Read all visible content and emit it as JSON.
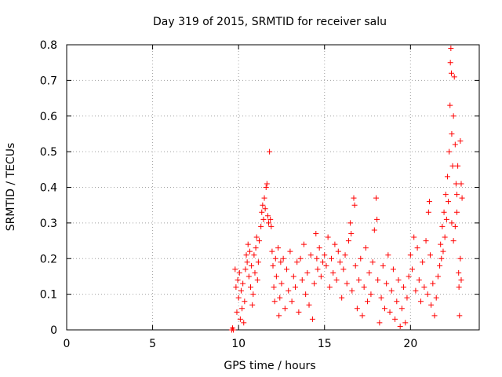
{
  "chart_data": {
    "type": "scatter",
    "title": "Day 319 of 2015, SRMTID for receiver salu",
    "xlabel": "GPS time / hours",
    "ylabel": "SRMTID / TECUs",
    "xlim": [
      0,
      24
    ],
    "ylim": [
      0,
      0.8
    ],
    "xticks": [
      0,
      5,
      10,
      15,
      20
    ],
    "yticks": [
      0,
      0.1,
      0.2,
      0.3,
      0.4,
      0.5,
      0.6,
      0.7,
      0.8
    ],
    "xtick_labels": [
      "0",
      "5",
      "10",
      "15",
      "20"
    ],
    "ytick_labels": [
      "0",
      "0.1",
      "0.2",
      "0.3",
      "0.4",
      "0.5",
      "0.6",
      "0.7",
      "0.8"
    ],
    "grid": true,
    "marker": "+",
    "color": "#ff0000",
    "series": [
      {
        "name": "SRMTID",
        "points": [
          [
            9.6,
            0.0
          ],
          [
            9.7,
            0.0
          ],
          [
            9.65,
            0.005
          ],
          [
            9.8,
            0.17
          ],
          [
            9.85,
            0.12
          ],
          [
            9.9,
            0.05
          ],
          [
            9.95,
            0.14
          ],
          [
            10.0,
            0.09
          ],
          [
            10.05,
            0.16
          ],
          [
            10.1,
            0.03
          ],
          [
            10.15,
            0.11
          ],
          [
            10.2,
            0.06
          ],
          [
            10.25,
            0.13
          ],
          [
            10.3,
            0.02
          ],
          [
            10.35,
            0.08
          ],
          [
            10.4,
            0.17
          ],
          [
            10.45,
            0.21
          ],
          [
            10.5,
            0.19
          ],
          [
            10.55,
            0.24
          ],
          [
            10.6,
            0.15
          ],
          [
            10.65,
            0.22
          ],
          [
            10.7,
            0.12
          ],
          [
            10.75,
            0.18
          ],
          [
            10.8,
            0.07
          ],
          [
            10.85,
            0.1
          ],
          [
            10.9,
            0.21
          ],
          [
            10.95,
            0.16
          ],
          [
            11.0,
            0.23
          ],
          [
            11.05,
            0.26
          ],
          [
            11.1,
            0.14
          ],
          [
            11.15,
            0.19
          ],
          [
            11.2,
            0.25
          ],
          [
            11.3,
            0.29
          ],
          [
            11.35,
            0.33
          ],
          [
            11.4,
            0.35
          ],
          [
            11.45,
            0.31
          ],
          [
            11.5,
            0.37
          ],
          [
            11.55,
            0.34
          ],
          [
            11.6,
            0.4
          ],
          [
            11.65,
            0.41
          ],
          [
            11.7,
            0.32
          ],
          [
            11.75,
            0.3
          ],
          [
            11.8,
            0.5
          ],
          [
            11.85,
            0.31
          ],
          [
            11.9,
            0.29
          ],
          [
            11.95,
            0.22
          ],
          [
            12.0,
            0.18
          ],
          [
            12.05,
            0.12
          ],
          [
            12.1,
            0.08
          ],
          [
            12.15,
            0.2
          ],
          [
            12.2,
            0.15
          ],
          [
            12.3,
            0.23
          ],
          [
            12.35,
            0.04
          ],
          [
            12.4,
            0.09
          ],
          [
            12.45,
            0.19
          ],
          [
            12.5,
            0.13
          ],
          [
            12.6,
            0.2
          ],
          [
            12.7,
            0.06
          ],
          [
            12.8,
            0.17
          ],
          [
            12.9,
            0.11
          ],
          [
            13.0,
            0.22
          ],
          [
            13.1,
            0.08
          ],
          [
            13.2,
            0.15
          ],
          [
            13.3,
            0.12
          ],
          [
            13.4,
            0.19
          ],
          [
            13.5,
            0.05
          ],
          [
            13.6,
            0.2
          ],
          [
            13.7,
            0.14
          ],
          [
            13.8,
            0.24
          ],
          [
            13.9,
            0.1
          ],
          [
            14.0,
            0.16
          ],
          [
            14.1,
            0.07
          ],
          [
            14.2,
            0.21
          ],
          [
            14.3,
            0.03
          ],
          [
            14.4,
            0.13
          ],
          [
            14.5,
            0.27
          ],
          [
            14.55,
            0.2
          ],
          [
            14.6,
            0.17
          ],
          [
            14.7,
            0.23
          ],
          [
            14.8,
            0.15
          ],
          [
            14.9,
            0.19
          ],
          [
            15.0,
            0.21
          ],
          [
            15.1,
            0.18
          ],
          [
            15.2,
            0.26
          ],
          [
            15.3,
            0.12
          ],
          [
            15.4,
            0.2
          ],
          [
            15.5,
            0.16
          ],
          [
            15.6,
            0.24
          ],
          [
            15.7,
            0.14
          ],
          [
            15.8,
            0.22
          ],
          [
            15.9,
            0.19
          ],
          [
            16.0,
            0.09
          ],
          [
            16.1,
            0.17
          ],
          [
            16.2,
            0.21
          ],
          [
            16.3,
            0.13
          ],
          [
            16.4,
            0.25
          ],
          [
            16.5,
            0.3
          ],
          [
            16.55,
            0.27
          ],
          [
            16.6,
            0.11
          ],
          [
            16.7,
            0.37
          ],
          [
            16.75,
            0.35
          ],
          [
            16.8,
            0.18
          ],
          [
            16.9,
            0.06
          ],
          [
            17.0,
            0.14
          ],
          [
            17.1,
            0.2
          ],
          [
            17.2,
            0.04
          ],
          [
            17.3,
            0.12
          ],
          [
            17.4,
            0.23
          ],
          [
            17.5,
            0.08
          ],
          [
            17.6,
            0.16
          ],
          [
            17.7,
            0.1
          ],
          [
            17.8,
            0.19
          ],
          [
            17.9,
            0.28
          ],
          [
            18.0,
            0.37
          ],
          [
            18.05,
            0.31
          ],
          [
            18.1,
            0.14
          ],
          [
            18.2,
            0.02
          ],
          [
            18.3,
            0.09
          ],
          [
            18.4,
            0.18
          ],
          [
            18.5,
            0.06
          ],
          [
            18.6,
            0.13
          ],
          [
            18.7,
            0.21
          ],
          [
            18.8,
            0.05
          ],
          [
            18.9,
            0.11
          ],
          [
            19.0,
            0.17
          ],
          [
            19.1,
            0.03
          ],
          [
            19.2,
            0.08
          ],
          [
            19.3,
            0.14
          ],
          [
            19.4,
            0.01
          ],
          [
            19.5,
            0.06
          ],
          [
            19.6,
            0.12
          ],
          [
            19.7,
            0.02
          ],
          [
            19.8,
            0.09
          ],
          [
            19.9,
            0.15
          ],
          [
            20.0,
            0.21
          ],
          [
            20.1,
            0.17
          ],
          [
            20.2,
            0.26
          ],
          [
            20.3,
            0.11
          ],
          [
            20.4,
            0.23
          ],
          [
            20.5,
            0.14
          ],
          [
            20.6,
            0.08
          ],
          [
            20.7,
            0.19
          ],
          [
            20.8,
            0.12
          ],
          [
            20.9,
            0.25
          ],
          [
            21.0,
            0.1
          ],
          [
            21.05,
            0.33
          ],
          [
            21.1,
            0.36
          ],
          [
            21.15,
            0.21
          ],
          [
            21.2,
            0.07
          ],
          [
            21.3,
            0.13
          ],
          [
            21.4,
            0.04
          ],
          [
            21.5,
            0.09
          ],
          [
            21.6,
            0.15
          ],
          [
            21.7,
            0.18
          ],
          [
            21.75,
            0.24
          ],
          [
            21.8,
            0.2
          ],
          [
            21.85,
            0.29
          ],
          [
            21.9,
            0.22
          ],
          [
            21.95,
            0.33
          ],
          [
            22.0,
            0.26
          ],
          [
            22.05,
            0.38
          ],
          [
            22.1,
            0.31
          ],
          [
            22.15,
            0.43
          ],
          [
            22.2,
            0.36
          ],
          [
            22.25,
            0.5
          ],
          [
            22.3,
            0.63
          ],
          [
            22.32,
            0.75
          ],
          [
            22.35,
            0.79
          ],
          [
            22.38,
            0.72
          ],
          [
            22.4,
            0.55
          ],
          [
            22.45,
            0.46
          ],
          [
            22.5,
            0.6
          ],
          [
            22.55,
            0.71
          ],
          [
            22.6,
            0.52
          ],
          [
            22.65,
            0.41
          ],
          [
            22.7,
            0.38
          ],
          [
            22.75,
            0.46
          ],
          [
            22.8,
            0.16
          ],
          [
            22.82,
            0.12
          ],
          [
            22.85,
            0.04
          ],
          [
            22.9,
            0.53
          ],
          [
            22.95,
            0.41
          ],
          [
            23.0,
            0.37
          ],
          [
            22.5,
            0.25
          ],
          [
            22.6,
            0.29
          ],
          [
            22.7,
            0.33
          ],
          [
            22.4,
            0.3
          ],
          [
            22.9,
            0.2
          ],
          [
            22.95,
            0.14
          ]
        ]
      }
    ]
  }
}
